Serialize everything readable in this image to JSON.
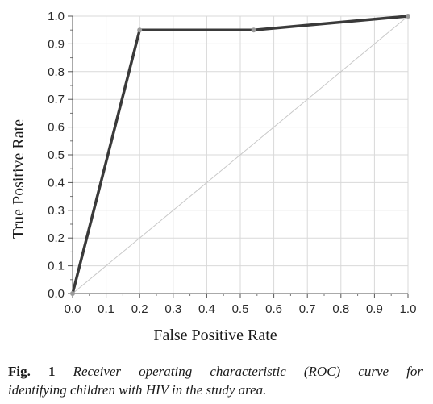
{
  "chart_data": {
    "type": "line",
    "title": "",
    "xlabel": "False Positive Rate",
    "ylabel": "True Positive Rate",
    "xlim": [
      0.0,
      1.0
    ],
    "ylim": [
      0.0,
      1.0
    ],
    "x_ticks": [
      "0.0",
      "0.1",
      "0.2",
      "0.3",
      "0.4",
      "0.5",
      "0.6",
      "0.7",
      "0.8",
      "0.9",
      "1.0"
    ],
    "y_ticks": [
      "0.0",
      "0.1",
      "0.2",
      "0.3",
      "0.4",
      "0.5",
      "0.6",
      "0.7",
      "0.8",
      "0.9",
      "1.0"
    ],
    "grid": true,
    "legend": "none",
    "series": [
      {
        "x": [
          0.0,
          0.2,
          0.54,
          1.0
        ],
        "y": [
          0.0,
          0.95,
          0.95,
          1.0
        ],
        "color": "#3a3a3a",
        "marker_color": "#9a9a9a"
      }
    ],
    "reference_line": {
      "x": [
        0.0,
        1.0
      ],
      "y": [
        0.0,
        1.0
      ],
      "color": "#c8c8c8"
    }
  },
  "caption": {
    "label": "Fig. 1",
    "text_line1": "Receiver operating characteristic (ROC) curve for",
    "text_line2": "identifying children with HIV in the study area."
  }
}
